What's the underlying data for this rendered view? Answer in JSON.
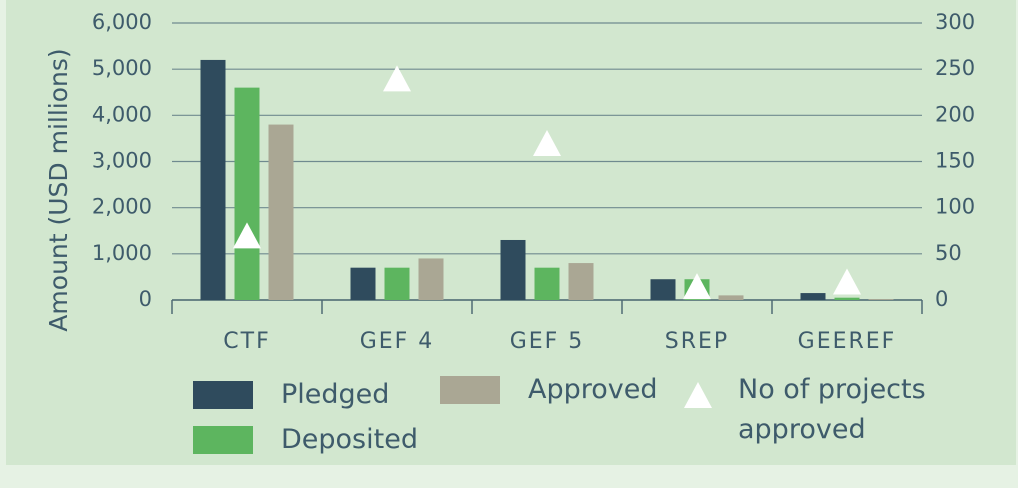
{
  "chart_data": {
    "type": "bar",
    "y_label": "Amount (USD millions)",
    "categories": [
      "CTF",
      "GEF 4",
      "GEF 5",
      "SREP",
      "GEEREF"
    ],
    "series": [
      {
        "name": "Pledged",
        "color": "#2f4b5d",
        "values": [
          5200,
          700,
          1300,
          450,
          150
        ]
      },
      {
        "name": "Deposited",
        "color": "#5db55f",
        "values": [
          4600,
          700,
          700,
          450,
          50
        ]
      },
      {
        "name": "Approved",
        "color": "#aaa794",
        "values": [
          3800,
          900,
          800,
          100,
          20
        ]
      },
      {
        "name": "No of projects approved",
        "color": "#ffffff",
        "type": "triangle",
        "axis": "y2",
        "values": [
          70,
          240,
          170,
          15,
          20
        ]
      }
    ],
    "ylim": [
      0,
      6000
    ],
    "yticks": [
      0,
      {
        "value": 1000,
        "label": "1,000"
      },
      {
        "value": 2000,
        "label": "2,000"
      },
      {
        "value": 3000,
        "label": "3,000"
      },
      {
        "value": 4000,
        "label": "4,000"
      },
      {
        "value": 5000,
        "label": "5,000"
      },
      {
        "value": 6000,
        "label": "6,000"
      }
    ],
    "y2lim": [
      0,
      300
    ],
    "y2ticks": [
      0,
      50,
      100,
      150,
      200,
      250,
      300
    ],
    "grid": true
  }
}
